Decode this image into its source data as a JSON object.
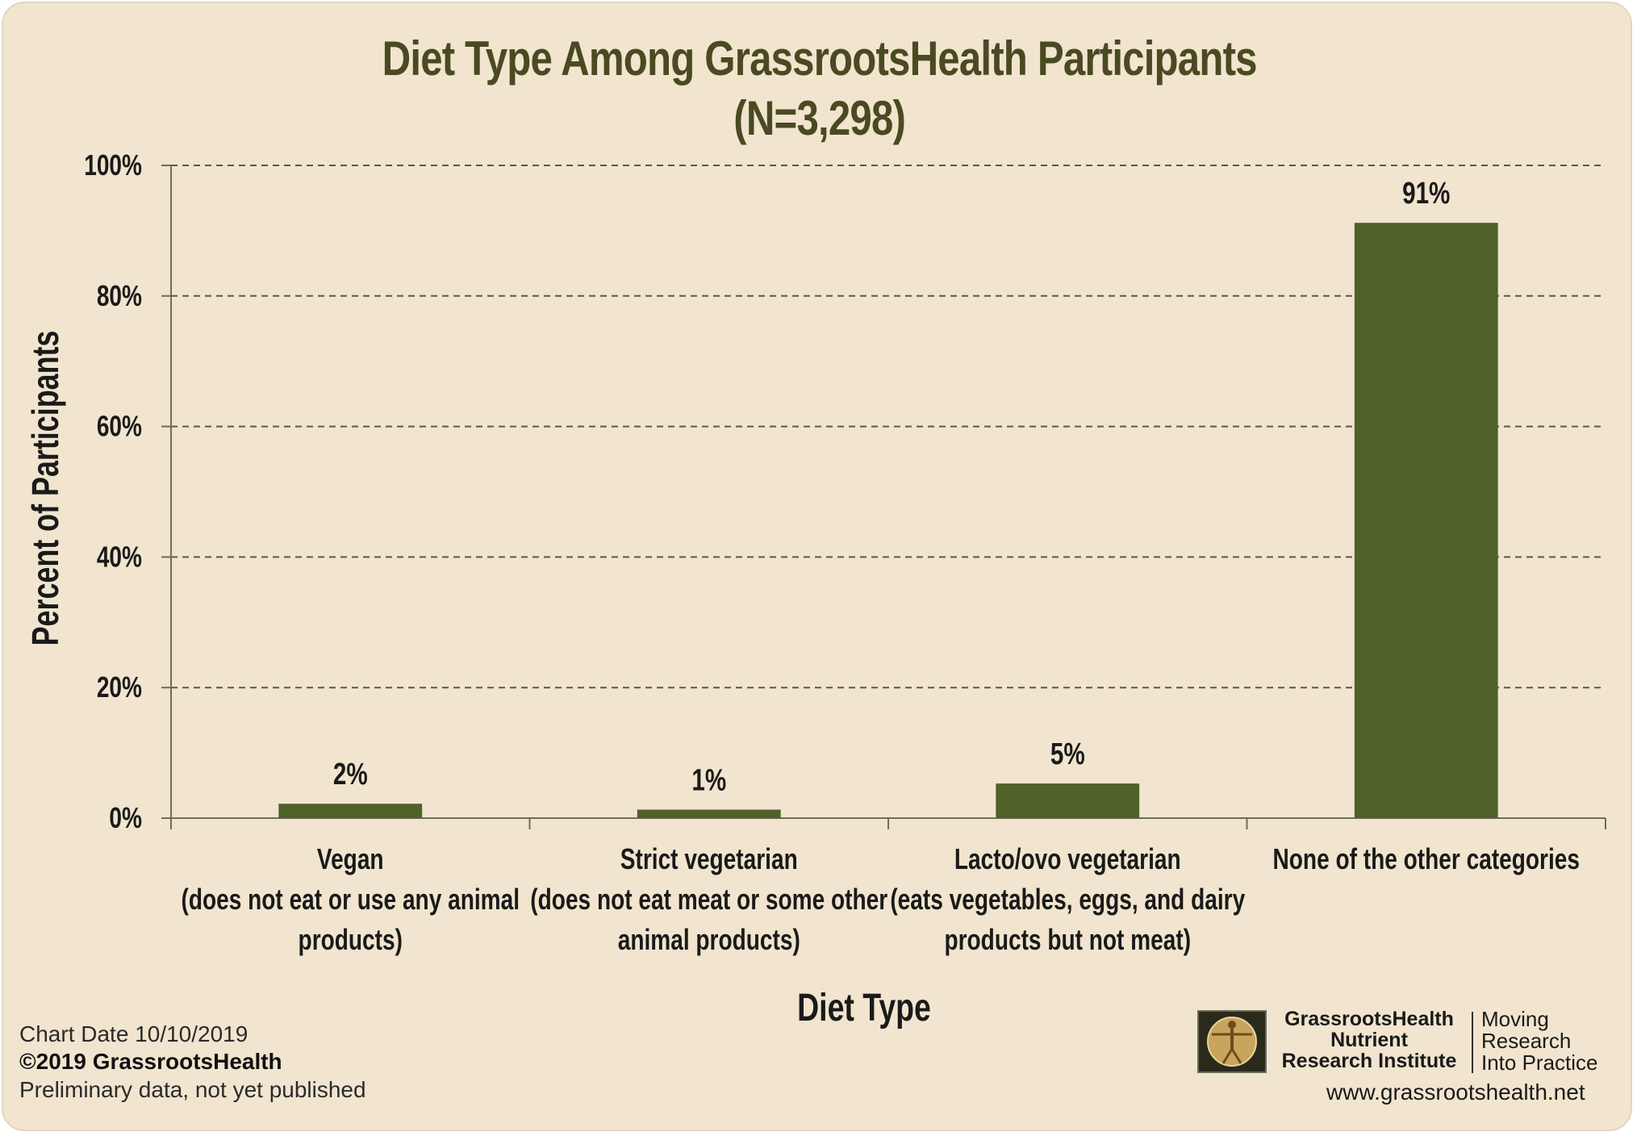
{
  "chart_data": {
    "type": "bar",
    "title": "Diet Type Among GrassrootsHealth Participants",
    "subtitle": "(N=3,298)",
    "xlabel": "Diet Type",
    "ylabel": "Percent of Participants",
    "ylim": [
      0,
      100
    ],
    "yticks": [
      "0%",
      "20%",
      "40%",
      "60%",
      "80%",
      "100%"
    ],
    "ytick_values": [
      0,
      20,
      40,
      60,
      80,
      100
    ],
    "grid": true,
    "categories": [
      [
        "Vegan",
        "(does not eat or use any animal",
        "products)"
      ],
      [
        "Strict vegetarian",
        "(does not eat meat or some other",
        "animal products)"
      ],
      [
        "Lacto/ovo vegetarian",
        "(eats vegetables, eggs, and dairy",
        "products but not meat)"
      ],
      [
        "None of the other categories"
      ]
    ],
    "values": [
      2.2,
      1.3,
      5.3,
      91.2
    ],
    "data_labels": [
      "2%",
      "1%",
      "5%",
      "91%"
    ],
    "bar_color": "#506129",
    "axis_color": "#6e6e5a",
    "text_color": "#1a1a1a",
    "title_color": "#4a4a22"
  },
  "footer": {
    "chart_date": "Chart Date  10/10/2019",
    "copyright": "©2019 GrassrootsHealth",
    "note": "Preliminary data, not yet published"
  },
  "logo": {
    "org_lines": [
      "GrassrootsHealth",
      "Nutrient",
      "Research Institute"
    ],
    "tagline_lines": [
      "Moving",
      "Research",
      "Into Practice"
    ],
    "url": "www.grassrootshealth.net"
  }
}
